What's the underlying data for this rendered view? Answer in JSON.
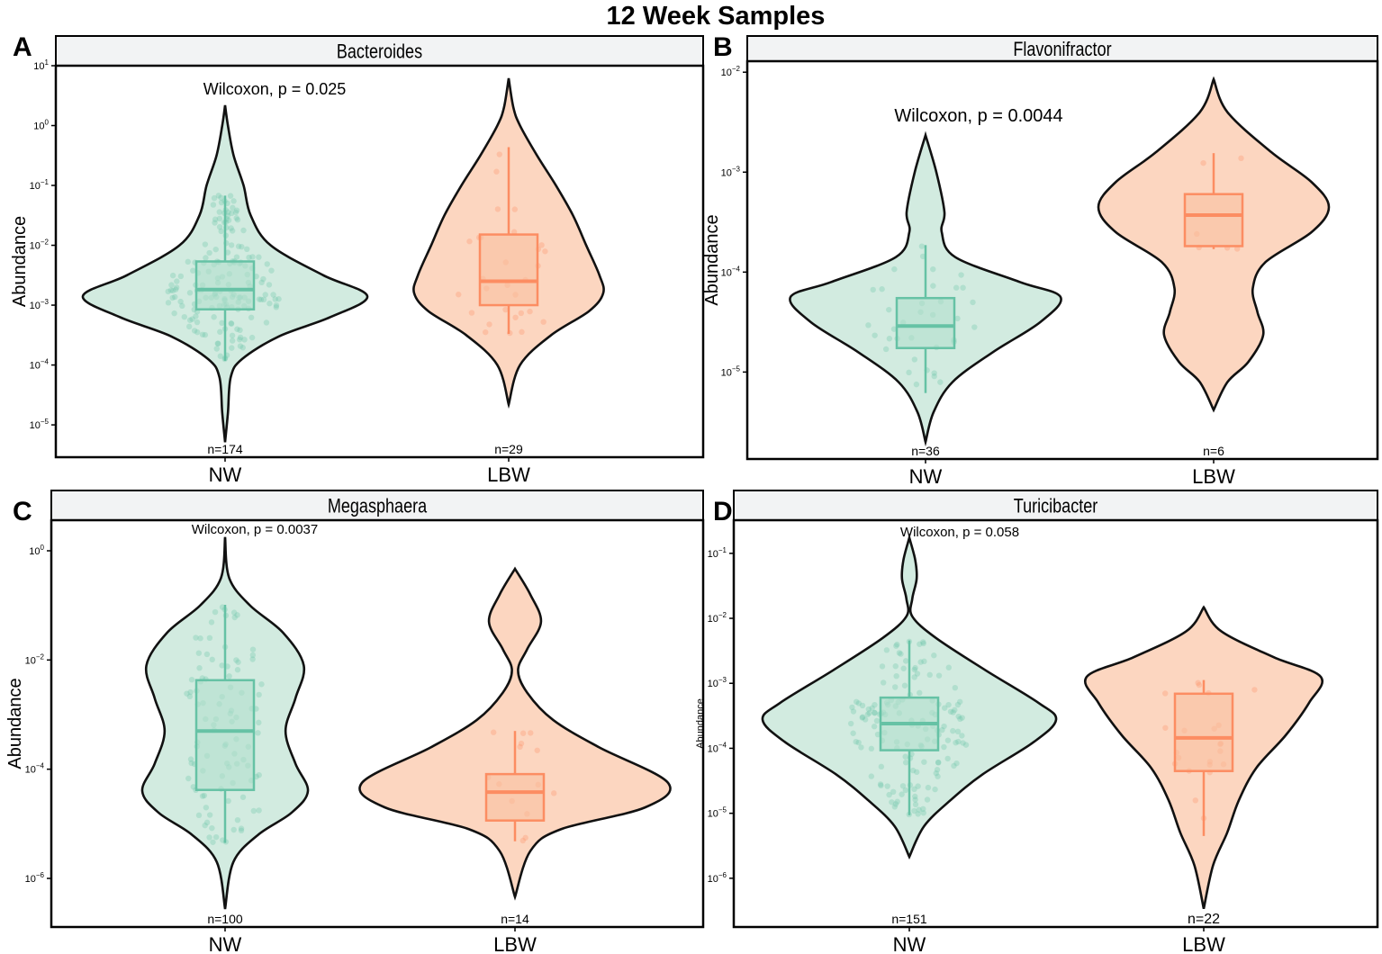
{
  "title": "12 Week Samples",
  "colors": {
    "NW_fill": "#d2ebe0",
    "NW_stroke": "#66c2a5",
    "NW_box": "#b3dfcd",
    "LBW_fill": "#fcd6c0",
    "LBW_stroke": "#fc8d62",
    "LBW_box": "#f9c0a0",
    "strip_bg": "#f2f3f4"
  },
  "chart_data": [
    {
      "type": "violin",
      "panel": "A",
      "title": "Bacteroides",
      "ylabel": "Abundance",
      "yscale": "log10",
      "ylim_log10": [
        -5.54,
        1
      ],
      "y_tick_exponents": [
        1,
        0,
        -1,
        -2,
        -3,
        -4,
        -5
      ],
      "categories": [
        "NW",
        "LBW"
      ],
      "annotation": "Wilcoxon, p = 0.025",
      "groups": [
        {
          "name": "NW",
          "n_label": "n=174",
          "n": 174,
          "box_log10": {
            "whisker_low": -3.93,
            "q1": -3.07,
            "median": -2.74,
            "q3": -2.27,
            "whisker_high": -1.17
          },
          "density_profile": [
            [
              0.34,
              0
            ],
            [
              0,
              0.02
            ],
            [
              -0.5,
              0.06
            ],
            [
              -1,
              0.13
            ],
            [
              -1.5,
              0.18
            ],
            [
              -2,
              0.32
            ],
            [
              -2.5,
              0.69
            ],
            [
              -2.85,
              1
            ],
            [
              -3.2,
              0.74
            ],
            [
              -3.52,
              0.38
            ],
            [
              -3.9,
              0.12
            ],
            [
              -4.2,
              0.04
            ],
            [
              -4.8,
              0.02
            ],
            [
              -5.29,
              0
            ]
          ]
        },
        {
          "name": "LBW",
          "n_label": "n=29",
          "n": 29,
          "box_log10": {
            "whisker_low": -3.48,
            "q1": -3.0,
            "median": -2.6,
            "q3": -1.82,
            "whisker_high": -0.36
          },
          "density_profile": [
            [
              0.79,
              0
            ],
            [
              0.3,
              0.05
            ],
            [
              0,
              0.12
            ],
            [
              -0.5,
              0.3
            ],
            [
              -1,
              0.5
            ],
            [
              -1.5,
              0.68
            ],
            [
              -2,
              0.82
            ],
            [
              -2.5,
              0.96
            ],
            [
              -2.8,
              1
            ],
            [
              -3.1,
              0.85
            ],
            [
              -3.5,
              0.45
            ],
            [
              -4,
              0.12
            ],
            [
              -4.66,
              0
            ]
          ]
        }
      ]
    },
    {
      "type": "violin",
      "panel": "B",
      "title": "Flavonifractor",
      "ylabel": "Abundance",
      "yscale": "log10",
      "ylim_log10": [
        -5.87,
        -1.89
      ],
      "y_tick_exponents": [
        -2,
        -3,
        -4,
        -5
      ],
      "categories": [
        "NW",
        "LBW"
      ],
      "annotation": "Wilcoxon, p = 0.0044",
      "groups": [
        {
          "name": "NW",
          "n_label": "n=36",
          "n": 36,
          "box_log10": {
            "whisker_low": -5.21,
            "q1": -4.76,
            "median": -4.54,
            "q3": -4.26,
            "whisker_high": -3.73
          },
          "density_profile": [
            [
              -2.63,
              0
            ],
            [
              -3,
              0.08
            ],
            [
              -3.4,
              0.14
            ],
            [
              -3.6,
              0.12
            ],
            [
              -3.85,
              0.22
            ],
            [
              -4.1,
              0.7
            ],
            [
              -4.25,
              1
            ],
            [
              -4.5,
              0.85
            ],
            [
              -4.8,
              0.5
            ],
            [
              -5.1,
              0.2
            ],
            [
              -5.4,
              0.06
            ],
            [
              -5.7,
              0
            ]
          ]
        },
        {
          "name": "LBW",
          "n_label": "n=6",
          "n": 6,
          "box_log10": {
            "whisker_low": -3.77,
            "q1": -3.74,
            "median": -3.43,
            "q3": -3.22,
            "whisker_high": -2.81
          },
          "density_profile": [
            [
              -2.07,
              0
            ],
            [
              -2.4,
              0.12
            ],
            [
              -2.8,
              0.5
            ],
            [
              -3.1,
              0.85
            ],
            [
              -3.35,
              1
            ],
            [
              -3.6,
              0.85
            ],
            [
              -3.9,
              0.45
            ],
            [
              -4.16,
              0.34
            ],
            [
              -4.4,
              0.38
            ],
            [
              -4.63,
              0.43
            ],
            [
              -4.9,
              0.3
            ],
            [
              -5.1,
              0.12
            ],
            [
              -5.38,
              0
            ]
          ]
        }
      ]
    },
    {
      "type": "violin",
      "panel": "C",
      "title": "Megasphaera",
      "ylabel": "Abundance",
      "yscale": "log10",
      "ylim_log10": [
        -6.89,
        0.56
      ],
      "y_tick_exponents": [
        0,
        -2,
        -4,
        -6
      ],
      "categories": [
        "NW",
        "LBW"
      ],
      "annotation": "Wilcoxon, p = 0.0037",
      "groups": [
        {
          "name": "NW",
          "n_label": "n=100",
          "n": 100,
          "box_log10": {
            "whisker_low": -5.35,
            "q1": -4.38,
            "median": -3.3,
            "q3": -2.37,
            "whisker_high": -0.99
          },
          "density_profile": [
            [
              0.25,
              0
            ],
            [
              -0.5,
              0.05
            ],
            [
              -1,
              0.3
            ],
            [
              -1.5,
              0.7
            ],
            [
              -2.1,
              0.95
            ],
            [
              -2.7,
              0.85
            ],
            [
              -3.3,
              0.73
            ],
            [
              -3.9,
              0.85
            ],
            [
              -4.4,
              1
            ],
            [
              -4.8,
              0.8
            ],
            [
              -5.2,
              0.4
            ],
            [
              -5.7,
              0.1
            ],
            [
              -6.56,
              0
            ]
          ]
        },
        {
          "name": "LBW",
          "n_label": "n=14",
          "n": 14,
          "box_log10": {
            "whisker_low": -5.32,
            "q1": -4.94,
            "median": -4.42,
            "q3": -4.09,
            "whisker_high": -3.3
          },
          "density_profile": [
            [
              -0.33,
              0
            ],
            [
              -0.8,
              0.1
            ],
            [
              -1.3,
              0.17
            ],
            [
              -1.8,
              0.08
            ],
            [
              -2.19,
              0.02
            ],
            [
              -2.6,
              0.08
            ],
            [
              -3.1,
              0.25
            ],
            [
              -3.6,
              0.55
            ],
            [
              -4.25,
              1
            ],
            [
              -4.7,
              0.85
            ],
            [
              -5.1,
              0.3
            ],
            [
              -5.5,
              0.1
            ],
            [
              -6.34,
              0
            ]
          ]
        }
      ]
    },
    {
      "type": "violin",
      "panel": "D",
      "title": "Turicibacter",
      "ylabel": "Abundance",
      "yscale": "log10",
      "ylim_log10": [
        -6.75,
        -0.49
      ],
      "y_tick_exponents": [
        -1,
        -2,
        -3,
        -4,
        -5,
        -6
      ],
      "categories": [
        "NW",
        "LBW"
      ],
      "annotation": "Wilcoxon, p = 0.058",
      "groups": [
        {
          "name": "NW",
          "n_label": "n=151",
          "n": 151,
          "box_log10": {
            "whisker_low": -5.03,
            "q1": -4.03,
            "median": -3.62,
            "q3": -3.22,
            "whisker_high": -2.34
          },
          "density_profile": [
            [
              -0.76,
              0
            ],
            [
              -1.1,
              0.04
            ],
            [
              -1.39,
              0.05
            ],
            [
              -1.7,
              0.02
            ],
            [
              -1.97,
              0.02
            ],
            [
              -2.3,
              0.18
            ],
            [
              -2.8,
              0.52
            ],
            [
              -3.3,
              0.88
            ],
            [
              -3.56,
              1
            ],
            [
              -3.9,
              0.85
            ],
            [
              -4.4,
              0.5
            ],
            [
              -4.8,
              0.28
            ],
            [
              -5.2,
              0.1
            ],
            [
              -5.67,
              0
            ]
          ]
        },
        {
          "name": "LBW",
          "n_label": "n=22",
          "n": 22,
          "box_log10": {
            "whisker_low": -5.35,
            "q1": -4.35,
            "median": -3.84,
            "q3": -3.16,
            "whisker_high": -2.95
          },
          "density_profile": [
            [
              -1.83,
              0
            ],
            [
              -2.2,
              0.15
            ],
            [
              -2.6,
              0.6
            ],
            [
              -2.9,
              1
            ],
            [
              -3.3,
              0.9
            ],
            [
              -3.8,
              0.7
            ],
            [
              -4.3,
              0.45
            ],
            [
              -4.8,
              0.3
            ],
            [
              -5.3,
              0.2
            ],
            [
              -5.8,
              0.08
            ],
            [
              -6.47,
              0
            ]
          ]
        }
      ]
    }
  ]
}
